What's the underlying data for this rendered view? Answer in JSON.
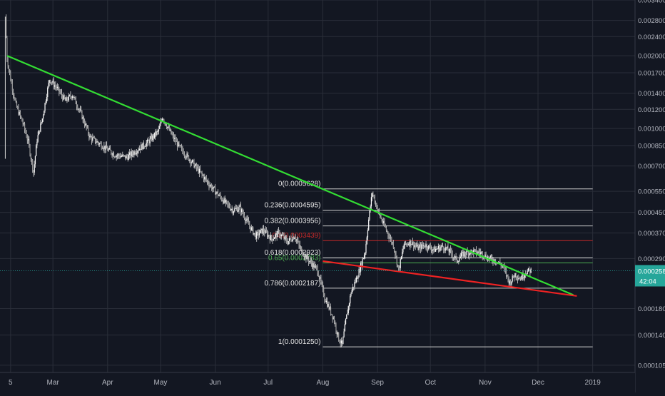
{
  "chart_data": {
    "type": "candlestick",
    "instrument": "",
    "y_scale": "log",
    "ylim": [
      9.8e-05,
      0.0034
    ],
    "xlim": [
      "2018-01-30",
      "2019-01-25"
    ],
    "x_ticks": [
      {
        "label": "5",
        "date": "2018-02-05"
      },
      {
        "label": "Mar",
        "date": "2018-03-01"
      },
      {
        "label": "Apr",
        "date": "2018-04-01"
      },
      {
        "label": "May",
        "date": "2018-05-01"
      },
      {
        "label": "Jun",
        "date": "2018-06-01"
      },
      {
        "label": "Jul",
        "date": "2018-07-01"
      },
      {
        "label": "Aug",
        "date": "2018-08-01"
      },
      {
        "label": "Sep",
        "date": "2018-09-01"
      },
      {
        "label": "Oct",
        "date": "2018-10-01"
      },
      {
        "label": "Nov",
        "date": "2018-11-01"
      },
      {
        "label": "Dec",
        "date": "2018-12-01"
      },
      {
        "label": "2019",
        "date": "2019-01-01"
      }
    ],
    "y_ticks": [
      "0.0034000",
      "0.0028000",
      "0.0024000",
      "0.0020000",
      "0.0017000",
      "0.0014000",
      "0.0012000",
      "0.0010000",
      "0.0008500",
      "0.0007000",
      "0.0005500",
      "0.0004500",
      "0.0003700",
      "0.0002900",
      "0.0001800",
      "0.0001400",
      "0.0001050"
    ],
    "price_path": [
      [
        "2018-02-02",
        0.0029
      ],
      [
        "2018-02-03",
        0.00195
      ],
      [
        "2018-02-05",
        0.0016
      ],
      [
        "2018-02-08",
        0.00125
      ],
      [
        "2018-02-12",
        0.00105
      ],
      [
        "2018-02-15",
        0.00088
      ],
      [
        "2018-02-18",
        0.00066
      ],
      [
        "2018-02-20",
        0.0009
      ],
      [
        "2018-02-23",
        0.0011
      ],
      [
        "2018-02-27",
        0.0016
      ],
      [
        "2018-03-03",
        0.00148
      ],
      [
        "2018-03-08",
        0.0013
      ],
      [
        "2018-03-12",
        0.00138
      ],
      [
        "2018-03-17",
        0.00115
      ],
      [
        "2018-03-22",
        0.00092
      ],
      [
        "2018-03-28",
        0.00086
      ],
      [
        "2018-04-05",
        0.00078
      ],
      [
        "2018-04-12",
        0.00076
      ],
      [
        "2018-04-18",
        0.00082
      ],
      [
        "2018-04-24",
        0.00088
      ],
      [
        "2018-04-30",
        0.00098
      ],
      [
        "2018-05-02",
        0.00112
      ],
      [
        "2018-05-07",
        0.00095
      ],
      [
        "2018-05-12",
        0.00083
      ],
      [
        "2018-05-18",
        0.00074
      ],
      [
        "2018-05-24",
        0.00065
      ],
      [
        "2018-05-31",
        0.00056
      ],
      [
        "2018-06-06",
        0.0005
      ],
      [
        "2018-06-11",
        0.00046
      ],
      [
        "2018-06-15",
        0.00047
      ],
      [
        "2018-06-20",
        0.0004
      ],
      [
        "2018-06-24",
        0.00036
      ],
      [
        "2018-06-28",
        0.00038
      ],
      [
        "2018-07-03",
        0.00035
      ],
      [
        "2018-07-07",
        0.00037
      ],
      [
        "2018-07-12",
        0.00034
      ],
      [
        "2018-07-16",
        0.00036
      ],
      [
        "2018-07-20",
        0.00031
      ],
      [
        "2018-07-25",
        0.00028
      ],
      [
        "2018-07-29",
        0.00026
      ],
      [
        "2018-08-02",
        0.0002
      ],
      [
        "2018-08-07",
        0.000165
      ],
      [
        "2018-08-10",
        0.000135
      ],
      [
        "2018-08-12",
        0.000127
      ],
      [
        "2018-08-14",
        0.00016
      ],
      [
        "2018-08-17",
        0.00021
      ],
      [
        "2018-08-21",
        0.00025
      ],
      [
        "2018-08-25",
        0.00031
      ],
      [
        "2018-08-27",
        0.00042
      ],
      [
        "2018-08-29",
        0.000545
      ],
      [
        "2018-09-02",
        0.00044
      ],
      [
        "2018-09-06",
        0.00038
      ],
      [
        "2018-09-10",
        0.00033
      ],
      [
        "2018-09-13",
        0.00026
      ],
      [
        "2018-09-16",
        0.00033
      ],
      [
        "2018-09-20",
        0.00034
      ],
      [
        "2018-09-24",
        0.00032
      ],
      [
        "2018-09-28",
        0.00033
      ],
      [
        "2018-10-03",
        0.000315
      ],
      [
        "2018-10-08",
        0.000325
      ],
      [
        "2018-10-12",
        0.00031
      ],
      [
        "2018-10-16",
        0.000285
      ],
      [
        "2018-10-20",
        0.000305
      ],
      [
        "2018-10-25",
        0.00031
      ],
      [
        "2018-10-30",
        0.000305
      ],
      [
        "2018-11-03",
        0.00029
      ],
      [
        "2018-11-07",
        0.000285
      ],
      [
        "2018-11-11",
        0.00027
      ],
      [
        "2018-11-15",
        0.00023
      ],
      [
        "2018-11-18",
        0.00025
      ],
      [
        "2018-11-21",
        0.00024
      ],
      [
        "2018-11-24",
        0.000255
      ],
      [
        "2018-11-27",
        0.000259
      ]
    ],
    "trendlines": [
      {
        "name": "resistance",
        "color": "#33dd33",
        "from": [
          "2018-02-03",
          0.002
        ],
        "to": [
          "2018-12-21",
          0.000205
        ]
      },
      {
        "name": "support",
        "color": "#ee2222",
        "from": [
          "2018-08-01",
          0.000283
        ],
        "to": [
          "2018-12-23",
          0.000203
        ]
      }
    ],
    "fibonacci": {
      "x_start": "2018-08-01",
      "x_end": "2019-01-01",
      "levels": [
        {
          "label": "0(0.0005628)",
          "value": 0.0005628,
          "color": "#cfcfcf",
          "label_color": "#e6e6e6"
        },
        {
          "label": "0.236(0.0004595)",
          "value": 0.0004595,
          "color": "#cfcfcf",
          "label_color": "#e6e6e6"
        },
        {
          "label": "0.382(0.0003956)",
          "value": 0.0003956,
          "color": "#cfcfcf",
          "label_color": "#e6e6e6"
        },
        {
          "label": "0.5(0.0003439)",
          "value": 0.0003439,
          "color": "#c62828",
          "label_color": "#c62828"
        },
        {
          "label": "0.618(0.0002923)",
          "value": 0.0002923,
          "color": "#cfcfcf",
          "label_color": "#e6e6e6"
        },
        {
          "label": "0.65(0.0002783)",
          "value": 0.0002783,
          "color": "#4caf50",
          "label_color": "#4caf50"
        },
        {
          "label": "0.786(0.0002187)",
          "value": 0.0002187,
          "color": "#cfcfcf",
          "label_color": "#e6e6e6"
        },
        {
          "label": "1(0.0001250)",
          "value": 0.000125,
          "color": "#cfcfcf",
          "label_color": "#e6e6e6"
        }
      ]
    },
    "current_price": {
      "value": 0.0002581,
      "label": "0.0002581",
      "countdown": "42:04",
      "color": "#26a69a"
    },
    "colors": {
      "background": "#131722",
      "grid": "#2a2e39",
      "axis_text": "#b2b5be",
      "candles": "#d6d6d6"
    }
  }
}
